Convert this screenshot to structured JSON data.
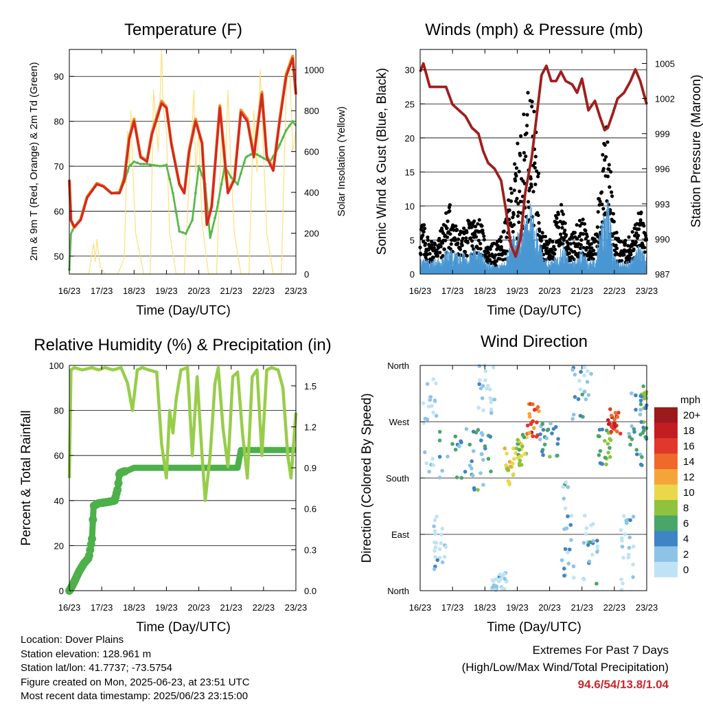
{
  "colors": {
    "temp_9m": "#d42a1e",
    "temp_2m": "#f08a28",
    "dewpoint": "#5ab84b",
    "solar": "#fae07a",
    "wind": "#4a97d2",
    "gust": "#000000",
    "pressure": "#a01e1e",
    "rh": "#98cd4a",
    "precip": "#4db04a",
    "gridline": "#000000"
  },
  "time_ticks": [
    "16/23",
    "17/23",
    "18/23",
    "19/23",
    "20/23",
    "21/23",
    "22/23",
    "23/23"
  ],
  "footer": {
    "location": "Location: Dover Plains",
    "elevation": "Station elevation: 128.961 m",
    "latlon": "Station lat/lon: 41.7737; -73.5754",
    "created": "Figure created on Mon, 2025-06-23, at 23:51 UTC",
    "latest": "Most recent data timestamp: 2025/06/23 23:15:00",
    "extremes_title": "Extremes For Past 7 Days",
    "extremes_subtitle": "(High/Low/Max Wind/Total Precipitation)",
    "extremes_values": "94.6/54/13.8/1.04"
  },
  "chart_data": [
    {
      "type": "line",
      "title": "Temperature (F)",
      "xlabel": "Time (Day/UTC)",
      "ylabel": "2m & 9m T (Red, Orange) & 2m Td (Green)",
      "ylabel_right": "Solar Insolation (Yellow)",
      "x_range_days": [
        0,
        7
      ],
      "ylim": [
        46,
        96
      ],
      "ylim_right": [
        0,
        1100
      ],
      "yticks": [
        50,
        60,
        70,
        80,
        90
      ],
      "yticks_right": [
        0,
        200,
        400,
        600,
        800,
        1000
      ],
      "gridlines": [
        50,
        60,
        70,
        80,
        90
      ],
      "series": [
        {
          "name": "9m T",
          "color": "#d42a1e",
          "x": [
            0,
            0.05,
            0.15,
            0.35,
            0.55,
            0.85,
            1.05,
            1.3,
            1.55,
            1.7,
            1.85,
            2.0,
            2.2,
            2.4,
            2.55,
            2.85,
            3.0,
            3.15,
            3.4,
            3.55,
            3.7,
            3.9,
            4.1,
            4.25,
            4.4,
            4.65,
            4.9,
            5.1,
            5.3,
            5.5,
            5.7,
            5.95,
            6.1,
            6.3,
            6.5,
            6.7,
            6.9,
            7.0
          ],
          "values": [
            67,
            58,
            56.5,
            58,
            63,
            66,
            65.5,
            64,
            64,
            67,
            76,
            80,
            72,
            71,
            77,
            84,
            83,
            75,
            66,
            64,
            73,
            80,
            75,
            57,
            61,
            83,
            64,
            67,
            82,
            80,
            72,
            86,
            72,
            69,
            80,
            90,
            94,
            86
          ]
        },
        {
          "name": "2m T",
          "color": "#f08a28",
          "x": [
            0,
            0.05,
            0.15,
            0.35,
            0.55,
            0.85,
            1.05,
            1.3,
            1.55,
            1.7,
            1.85,
            2.0,
            2.2,
            2.4,
            2.55,
            2.85,
            3.0,
            3.15,
            3.4,
            3.55,
            3.7,
            3.9,
            4.1,
            4.25,
            4.4,
            4.65,
            4.9,
            5.1,
            5.3,
            5.5,
            5.7,
            5.95,
            6.1,
            6.3,
            6.5,
            6.7,
            6.9,
            7.0
          ],
          "values": [
            67,
            58,
            56.3,
            58.2,
            63.2,
            66.2,
            65.6,
            64,
            64.2,
            67.5,
            76.5,
            80.5,
            72.2,
            71.2,
            77.5,
            84.5,
            83.2,
            75.2,
            66,
            64,
            73.5,
            80.5,
            75.2,
            57,
            61.2,
            83.5,
            64.2,
            67.2,
            82.5,
            80.5,
            72.3,
            86.5,
            72.3,
            69.2,
            80.5,
            90.5,
            94.5,
            86
          ]
        },
        {
          "name": "2m Td",
          "color": "#5ab84b",
          "x": [
            0,
            0.05,
            0.15,
            0.35,
            0.55,
            0.85,
            1.05,
            1.3,
            1.55,
            1.7,
            1.85,
            2.0,
            2.2,
            2.4,
            2.6,
            2.85,
            3.0,
            3.2,
            3.4,
            3.6,
            3.8,
            4.0,
            4.2,
            4.35,
            4.55,
            4.8,
            5.0,
            5.2,
            5.45,
            5.7,
            5.95,
            6.2,
            6.45,
            6.7,
            6.9,
            7.0
          ],
          "values": [
            47,
            55,
            56.5,
            58,
            63,
            66,
            65.5,
            64,
            64,
            66.5,
            70,
            71,
            70.5,
            70.5,
            70.2,
            70,
            70.3,
            64,
            55.5,
            55,
            58,
            70,
            66,
            54,
            60,
            70,
            67.5,
            66,
            72,
            73,
            72,
            71,
            74,
            78,
            80,
            79
          ]
        },
        {
          "name": "Solar",
          "axis": "right",
          "color": "#fae07a",
          "x": [
            0,
            0.6,
            0.75,
            0.8,
            0.85,
            0.95,
            1.1,
            1.5,
            1.7,
            1.8,
            1.85,
            1.9,
            1.95,
            2.05,
            2.3,
            2.5,
            2.6,
            2.75,
            2.85,
            2.9,
            3.0,
            3.1,
            3.3,
            3.55,
            3.75,
            3.85,
            3.9,
            4.0,
            4.1,
            4.3,
            4.55,
            4.7,
            4.8,
            4.9,
            5.0,
            5.1,
            5.3,
            5.55,
            5.7,
            5.8,
            5.9,
            6.0,
            6.1,
            6.3,
            6.55,
            6.7,
            6.8,
            6.9,
            7.0
          ],
          "values": [
            0,
            0,
            150,
            60,
            170,
            40,
            0,
            0,
            80,
            700,
            520,
            800,
            560,
            200,
            0,
            0,
            900,
            600,
            1100,
            820,
            700,
            200,
            0,
            0,
            600,
            900,
            500,
            700,
            250,
            0,
            0,
            700,
            450,
            900,
            500,
            200,
            0,
            0,
            800,
            500,
            1000,
            600,
            200,
            0,
            0,
            900,
            1050,
            600,
            700
          ]
        }
      ]
    },
    {
      "type": "scatter",
      "title": "Winds (mph) & Pressure (mb)",
      "xlabel": "Time (Day/UTC)",
      "ylabel": "Sonic Wind & Gust (Blue, Black)",
      "ylabel_right": "Station Pressure (Maroon)",
      "x_range_days": [
        0,
        7
      ],
      "ylim": [
        0,
        33
      ],
      "ylim_right": [
        987,
        1006.2
      ],
      "yticks": [
        0,
        5,
        10,
        15,
        20,
        25,
        30
      ],
      "yticks_right": [
        987,
        990,
        993,
        996,
        999,
        1002,
        1005
      ],
      "gridlines": [
        5,
        10,
        15,
        20,
        25,
        30
      ],
      "pressure": {
        "name": "Station Pressure",
        "color": "#a01e1e",
        "x": [
          0,
          0.1,
          0.2,
          0.3,
          0.5,
          0.8,
          1.0,
          1.2,
          1.4,
          1.6,
          1.8,
          1.95,
          2.1,
          2.3,
          2.5,
          2.65,
          2.8,
          2.95,
          3.1,
          3.25,
          3.45,
          3.6,
          3.75,
          3.9,
          4.05,
          4.2,
          4.35,
          4.5,
          4.7,
          4.85,
          5.0,
          5.2,
          5.4,
          5.55,
          5.7,
          5.8,
          5.95,
          6.1,
          6.3,
          6.5,
          6.65,
          6.8,
          6.9,
          7.0
        ],
        "values": [
          1004.3,
          1005,
          1004,
          1003,
          1003,
          1003,
          1001.5,
          1001,
          1000.5,
          999.5,
          999,
          997.5,
          996.5,
          996,
          995,
          992.5,
          989.5,
          988.5,
          990,
          994,
          997,
          1000.5,
          1004,
          1004.8,
          1003.5,
          1003.5,
          1004.3,
          1003.5,
          1003.2,
          1002.5,
          1003.7,
          1001,
          1001.8,
          1000.5,
          999.3,
          999.5,
          1000.7,
          1002,
          1002.5,
          1003.5,
          1004.5,
          1003.5,
          1002.5,
          1001.5
        ]
      },
      "wind_mean_profile": {
        "name": "Sonic Wind",
        "color": "#4a97d2",
        "x": [
          0,
          0.3,
          0.6,
          0.9,
          1.2,
          1.5,
          1.8,
          2.1,
          2.4,
          2.6,
          2.8,
          3.0,
          3.2,
          3.4,
          3.6,
          3.8,
          4.0,
          4.2,
          4.4,
          4.6,
          4.8,
          5.0,
          5.2,
          5.4,
          5.6,
          5.8,
          6.0,
          6.2,
          6.4,
          6.6,
          6.8,
          7.0
        ],
        "values": [
          2,
          1.5,
          2,
          3,
          2.5,
          2.5,
          3,
          1.5,
          1,
          1.5,
          4,
          5,
          6,
          8,
          6,
          2,
          1.5,
          2,
          4,
          1.5,
          2,
          3,
          1.5,
          2,
          6,
          9,
          2,
          1.5,
          1.5,
          2,
          4,
          2
        ]
      },
      "gust_peak_profile": {
        "name": "Gust",
        "color": "#000000",
        "x": [
          0,
          0.3,
          0.6,
          0.9,
          1.2,
          1.5,
          1.8,
          2.1,
          2.4,
          2.6,
          2.8,
          3.0,
          3.2,
          3.4,
          3.6,
          3.8,
          4.0,
          4.2,
          4.4,
          4.6,
          4.8,
          5.0,
          5.2,
          5.4,
          5.6,
          5.8,
          6.0,
          6.2,
          6.4,
          6.6,
          6.8,
          7.0
        ],
        "values": [
          9,
          5,
          6,
          11,
          6,
          8,
          9,
          4,
          5,
          7,
          13,
          19,
          24,
          30,
          20,
          6,
          5,
          9,
          11,
          5,
          7,
          9,
          5,
          6,
          17,
          24,
          7,
          5,
          5,
          7,
          10,
          5
        ]
      }
    },
    {
      "type": "line",
      "title": "Relative Humidity (%) & Precipitation (in)",
      "xlabel": "Time (Day/UTC)",
      "ylabel": "Percent & Total Rainfall",
      "x_range_days": [
        0,
        7
      ],
      "ylim": [
        0,
        100
      ],
      "ylim_right": [
        0,
        1.65
      ],
      "yticks": [
        0,
        20,
        40,
        60,
        80,
        100
      ],
      "yticks_right": [
        "0.0",
        "0.3",
        "0.6",
        "0.9",
        "1.2",
        "1.5"
      ],
      "gridlines": [
        20,
        40,
        60,
        80
      ],
      "series": [
        {
          "name": "Relative Humidity",
          "color": "#98cd4a",
          "x": [
            0,
            0.05,
            0.15,
            0.4,
            0.7,
            0.9,
            1.1,
            1.35,
            1.6,
            1.8,
            1.95,
            2.1,
            2.25,
            2.45,
            2.7,
            2.85,
            3.0,
            3.1,
            3.2,
            3.3,
            3.45,
            3.65,
            3.8,
            3.95,
            4.1,
            4.2,
            4.35,
            4.5,
            4.6,
            4.75,
            4.9,
            5.05,
            5.2,
            5.35,
            5.5,
            5.65,
            5.8,
            5.95,
            6.1,
            6.25,
            6.45,
            6.6,
            6.75,
            6.85,
            7.0
          ],
          "values": [
            50,
            98,
            99,
            98,
            99,
            98,
            99,
            98,
            99,
            92,
            80,
            98,
            99,
            98,
            97,
            65,
            50,
            80,
            70,
            85,
            98,
            99,
            60,
            95,
            60,
            40,
            60,
            92,
            99,
            72,
            55,
            95,
            97,
            70,
            50,
            95,
            98,
            60,
            98,
            99,
            98,
            90,
            60,
            50,
            79
          ]
        },
        {
          "name": "Total Precipitation",
          "axis": "right",
          "color": "#4db04a",
          "x": [
            0,
            0.1,
            0.3,
            0.45,
            0.6,
            0.7,
            0.75,
            0.9,
            1.2,
            1.4,
            1.5,
            1.55,
            1.65,
            1.8,
            2.0,
            3.0,
            4.0,
            5.2,
            5.3,
            5.5,
            6.0,
            7.0
          ],
          "values": [
            0,
            0.04,
            0.14,
            0.2,
            0.24,
            0.38,
            0.62,
            0.64,
            0.65,
            0.66,
            0.75,
            0.86,
            0.87,
            0.88,
            0.9,
            0.9,
            0.9,
            0.9,
            1.03,
            1.03,
            1.03,
            1.03
          ]
        }
      ]
    },
    {
      "type": "scatter",
      "title": "Wind Direction",
      "xlabel": "Time (Day/UTC)",
      "ylabel": "Direction (Colored By Speed)",
      "x_range_days": [
        0,
        7
      ],
      "ylim_degrees": [
        0,
        360
      ],
      "ytick_labels": [
        "North",
        "East",
        "South",
        "West",
        "North"
      ],
      "gridlines_degrees": [
        90,
        180,
        270
      ],
      "colorbar": {
        "unit": "mph",
        "labels": [
          "0",
          "2",
          "4",
          "6",
          "8",
          "10",
          "12",
          "14",
          "16",
          "18",
          "20+"
        ],
        "colors": [
          "#bfe3f5",
          "#8ec3e8",
          "#3f84c4",
          "#48a668",
          "#8fc23f",
          "#e8d84a",
          "#f5a43a",
          "#ef6a2a",
          "#e0382a",
          "#c21e22",
          "#9a1a1e"
        ]
      }
    }
  ]
}
